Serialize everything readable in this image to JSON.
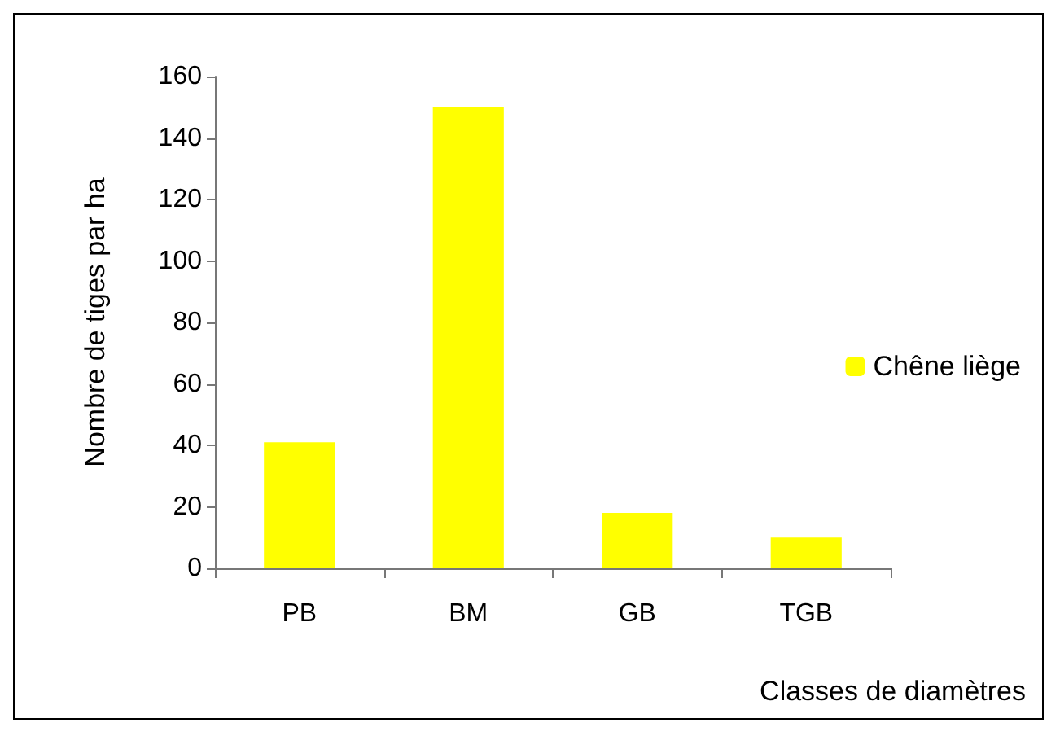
{
  "chart_data": {
    "type": "bar",
    "xlabel": "Classes de diamètres",
    "ylabel": "Nombre de tiges par ha",
    "categories": [
      "PB",
      "BM",
      "GB",
      "TGB"
    ],
    "series": [
      {
        "name": "Chêne liège",
        "color": "#ffff00",
        "values": [
          41,
          150,
          18,
          10
        ]
      }
    ],
    "ylim": [
      0,
      160
    ],
    "yticks": [
      0,
      20,
      40,
      60,
      80,
      100,
      120,
      140,
      160
    ],
    "grid": false,
    "legend": "right"
  }
}
